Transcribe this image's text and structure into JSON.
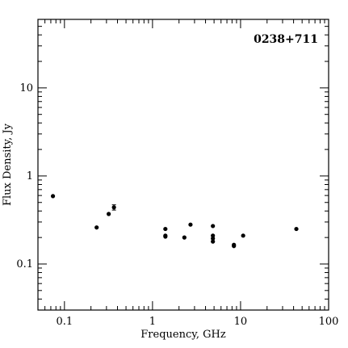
{
  "chart_data": {
    "type": "scatter",
    "title": "0238+711",
    "xlabel": "Frequency, GHz",
    "ylabel": "Flux Density, Jy",
    "x_scale": "log",
    "y_scale": "log",
    "xlim": [
      0.05,
      100
    ],
    "ylim": [
      0.03,
      60
    ],
    "x_ticks": [
      {
        "value": 0.1,
        "label": "0.1"
      },
      {
        "value": 1,
        "label": "1"
      },
      {
        "value": 10,
        "label": "10"
      },
      {
        "value": 100,
        "label": "100"
      }
    ],
    "y_ticks": [
      {
        "value": 0.1,
        "label": "0.1"
      },
      {
        "value": 1,
        "label": "1"
      },
      {
        "value": 10,
        "label": "10"
      }
    ],
    "grid": false,
    "points": [
      {
        "x": 0.074,
        "y": 0.59
      },
      {
        "x": 0.232,
        "y": 0.26
      },
      {
        "x": 0.318,
        "y": 0.37
      },
      {
        "x": 0.365,
        "y": 0.44,
        "err": 0.03
      },
      {
        "x": 1.4,
        "y": 0.25
      },
      {
        "x": 1.4,
        "y": 0.21
      },
      {
        "x": 1.4,
        "y": 0.205
      },
      {
        "x": 2.3,
        "y": 0.2
      },
      {
        "x": 2.7,
        "y": 0.28
      },
      {
        "x": 4.85,
        "y": 0.27
      },
      {
        "x": 4.85,
        "y": 0.21
      },
      {
        "x": 4.85,
        "y": 0.195
      },
      {
        "x": 4.85,
        "y": 0.18
      },
      {
        "x": 8.4,
        "y": 0.165
      },
      {
        "x": 8.4,
        "y": 0.16
      },
      {
        "x": 10.7,
        "y": 0.21
      },
      {
        "x": 43,
        "y": 0.25
      }
    ]
  }
}
